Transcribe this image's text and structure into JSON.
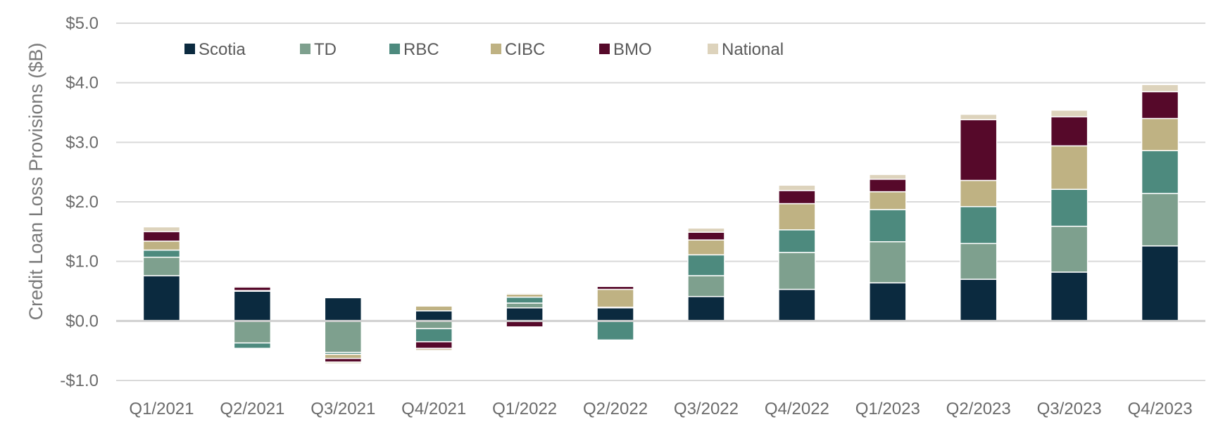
{
  "chart_data": {
    "type": "bar",
    "stacked": true,
    "ylabel": "Credit Loan Loss Provisions ($B)",
    "ylim": [
      -1.0,
      5.0
    ],
    "yticks": [
      -1.0,
      0.0,
      1.0,
      2.0,
      3.0,
      4.0,
      5.0
    ],
    "ytick_labels": [
      "-$1.0",
      "$0.0",
      "$1.0",
      "$2.0",
      "$3.0",
      "$4.0",
      "$5.0"
    ],
    "grid": true,
    "legend_position": "top-left",
    "categories": [
      "Q1/2021",
      "Q2/2021",
      "Q3/2021",
      "Q4/2021",
      "Q1/2022",
      "Q2/2022",
      "Q3/2022",
      "Q4/2022",
      "Q1/2023",
      "Q2/2023",
      "Q3/2023",
      "Q4/2023"
    ],
    "series": [
      {
        "name": "Scotia",
        "color": "#0b2a3f",
        "values": [
          0.76,
          0.5,
          0.39,
          0.17,
          0.22,
          0.22,
          0.41,
          0.53,
          0.64,
          0.7,
          0.82,
          1.26
        ]
      },
      {
        "name": "TD",
        "color": "#7ea08e",
        "values": [
          0.31,
          -0.37,
          -0.53,
          -0.13,
          0.08,
          0.01,
          0.35,
          0.62,
          0.69,
          0.6,
          0.77,
          0.88
        ]
      },
      {
        "name": "RBC",
        "color": "#4d8a7e",
        "values": [
          0.12,
          -0.09,
          -0.03,
          -0.22,
          0.1,
          -0.32,
          0.35,
          0.38,
          0.54,
          0.62,
          0.62,
          0.72
        ]
      },
      {
        "name": "CIBC",
        "color": "#bfb283",
        "values": [
          0.15,
          0.01,
          -0.07,
          0.08,
          0.05,
          0.3,
          0.25,
          0.44,
          0.3,
          0.44,
          0.73,
          0.54
        ]
      },
      {
        "name": "BMO",
        "color": "#56092a",
        "values": [
          0.16,
          0.06,
          -0.06,
          -0.11,
          -0.1,
          0.05,
          0.13,
          0.22,
          0.21,
          1.02,
          0.49,
          0.45
        ]
      },
      {
        "name": "National",
        "color": "#ddd3bc",
        "values": [
          0.08,
          0.02,
          -0.03,
          -0.04,
          0.02,
          0.01,
          0.07,
          0.09,
          0.08,
          0.09,
          0.11,
          0.12
        ]
      }
    ]
  }
}
